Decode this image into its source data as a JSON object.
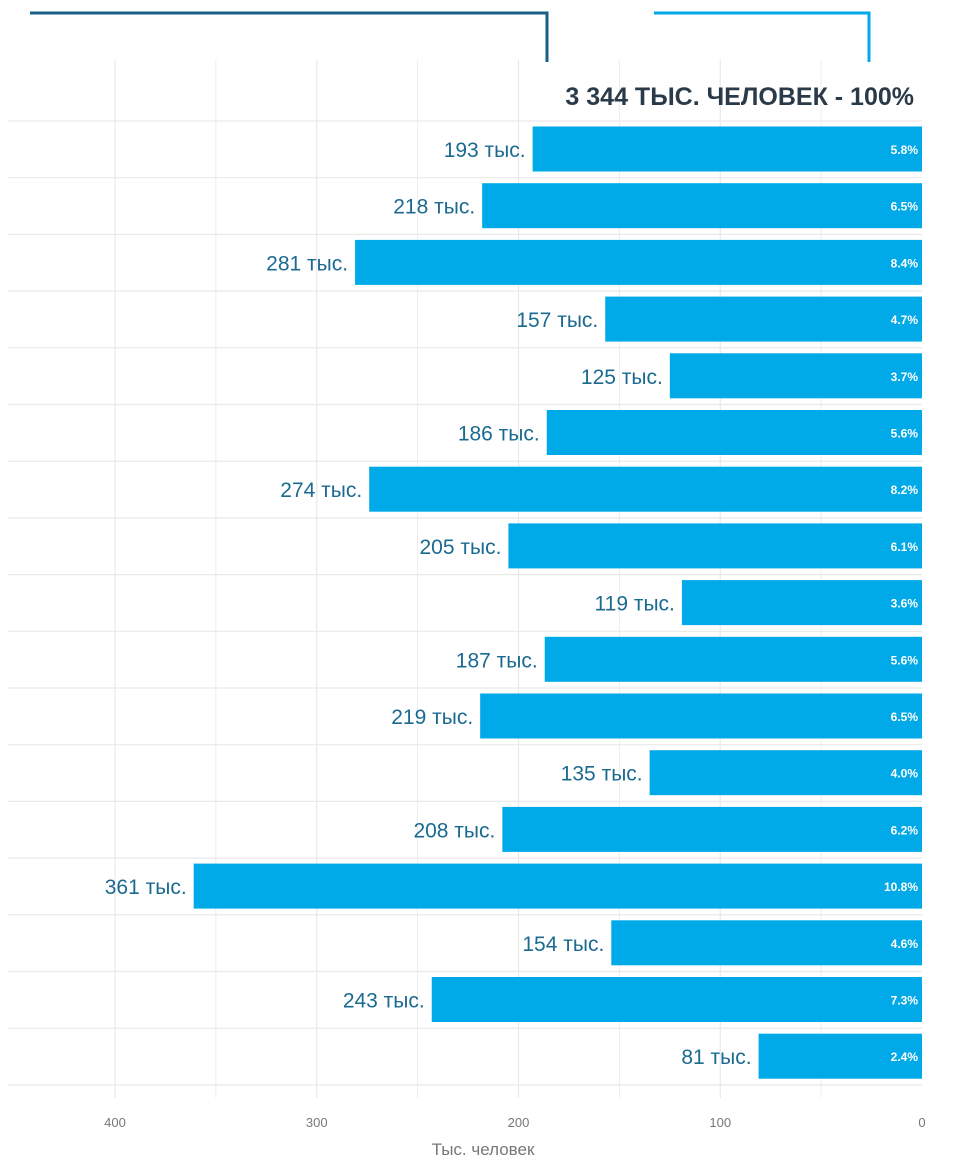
{
  "chart_data": {
    "type": "bar",
    "orientation": "horizontal",
    "x_direction": "reversed",
    "title": "3 344 ТЫС. ЧЕЛОВЕК - 100%",
    "xlabel": "Тыс. человек",
    "xlim": [
      0,
      400
    ],
    "x_ticks": [
      "400",
      "300",
      "200",
      "100",
      "0"
    ],
    "grid": true,
    "values": [
      193,
      218,
      281,
      157,
      125,
      186,
      274,
      205,
      119,
      187,
      219,
      135,
      208,
      361,
      154,
      243,
      81
    ],
    "value_labels": [
      "193 тыс.",
      "218 тыс.",
      "281 тыс.",
      "157 тыс.",
      "125 тыс.",
      "186 тыс.",
      "274 тыс.",
      "205 тыс.",
      "119 тыс.",
      "187 тыс.",
      "219 тыс.",
      "135 тыс.",
      "208 тыс.",
      "361 тыс.",
      "154 тыс.",
      "243 тыс.",
      "81 тыс."
    ],
    "percent_labels": [
      "5.8%",
      "6.5%",
      "8.4%",
      "4.7%",
      "3.7%",
      "5.6%",
      "8.2%",
      "6.1%",
      "3.6%",
      "5.6%",
      "6.5%",
      "4.0%",
      "6.2%",
      "10.8%",
      "4.6%",
      "7.3%",
      "2.4%"
    ]
  },
  "colors": {
    "bar": "#00a9e7",
    "label": "#1b6a90",
    "title": "#2a3a48",
    "grid": "#e9e9e9",
    "axis_text": "#777777",
    "callout_dark": "#1a5f86",
    "callout_light": "#00a9e7"
  }
}
